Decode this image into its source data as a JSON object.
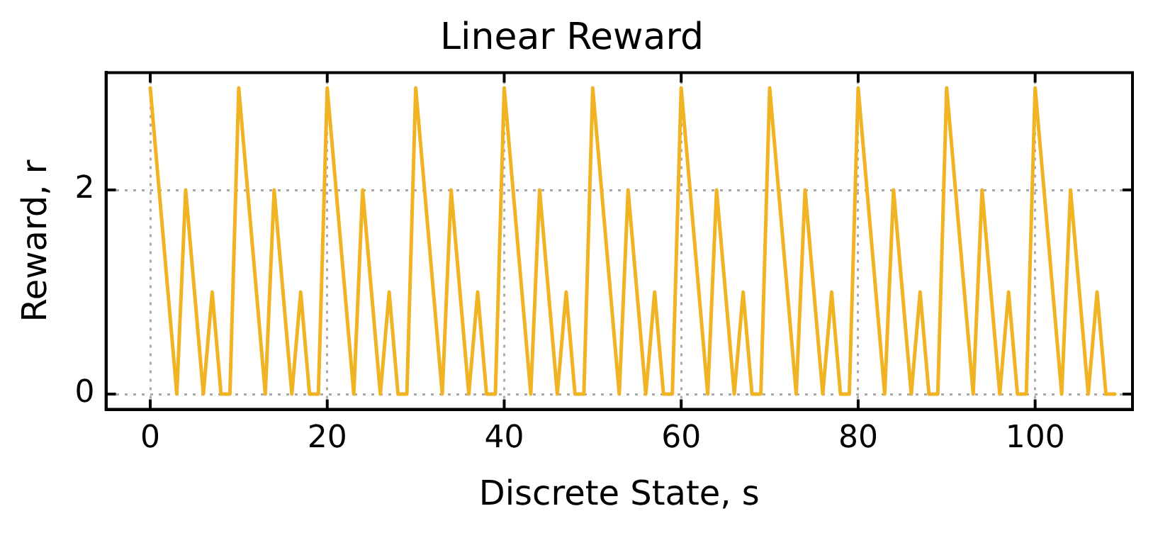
{
  "chart_data": {
    "type": "line",
    "title": "Linear Reward",
    "xlabel": "Discrete State, s",
    "ylabel": "Reward, r",
    "x": [
      0,
      1,
      2,
      3,
      4,
      5,
      6,
      7,
      8,
      9,
      10,
      11,
      12,
      13,
      14,
      15,
      16,
      17,
      18,
      19,
      20,
      21,
      22,
      23,
      24,
      25,
      26,
      27,
      28,
      29,
      30,
      31,
      32,
      33,
      34,
      35,
      36,
      37,
      38,
      39,
      40,
      41,
      42,
      43,
      44,
      45,
      46,
      47,
      48,
      49,
      50,
      51,
      52,
      53,
      54,
      55,
      56,
      57,
      58,
      59,
      60,
      61,
      62,
      63,
      64,
      65,
      66,
      67,
      68,
      69,
      70,
      71,
      72,
      73,
      74,
      75,
      76,
      77,
      78,
      79,
      80,
      81,
      82,
      83,
      84,
      85,
      86,
      87,
      88,
      89,
      90,
      91,
      92,
      93,
      94,
      95,
      96,
      97,
      98,
      99,
      100,
      101,
      102,
      103,
      104,
      105,
      106,
      107,
      108,
      109
    ],
    "series": [
      {
        "color": "#f0b323",
        "values": [
          3,
          2,
          1,
          0,
          2,
          1,
          0,
          1,
          0,
          0,
          3,
          2,
          1,
          0,
          2,
          1,
          0,
          1,
          0,
          0,
          3,
          2,
          1,
          0,
          2,
          1,
          0,
          1,
          0,
          0,
          3,
          2,
          1,
          0,
          2,
          1,
          0,
          1,
          0,
          0,
          3,
          2,
          1,
          0,
          2,
          1,
          0,
          1,
          0,
          0,
          3,
          2,
          1,
          0,
          2,
          1,
          0,
          1,
          0,
          0,
          3,
          2,
          1,
          0,
          2,
          1,
          0,
          1,
          0,
          0,
          3,
          2,
          1,
          0,
          2,
          1,
          0,
          1,
          0,
          0,
          3,
          2,
          1,
          0,
          2,
          1,
          0,
          1,
          0,
          0,
          3,
          2,
          1,
          0,
          2,
          1,
          0,
          1,
          0,
          0,
          3,
          2,
          1,
          0,
          2,
          1,
          0,
          1,
          0,
          0
        ]
      }
    ],
    "xlim": [
      -5,
      111
    ],
    "ylim": [
      -0.15,
      3.15
    ],
    "xticks": [
      0,
      20,
      40,
      60,
      80,
      100
    ],
    "yticks": [
      0,
      2
    ],
    "grid": true,
    "legend": false,
    "marker": "none",
    "line_style": "solid"
  }
}
